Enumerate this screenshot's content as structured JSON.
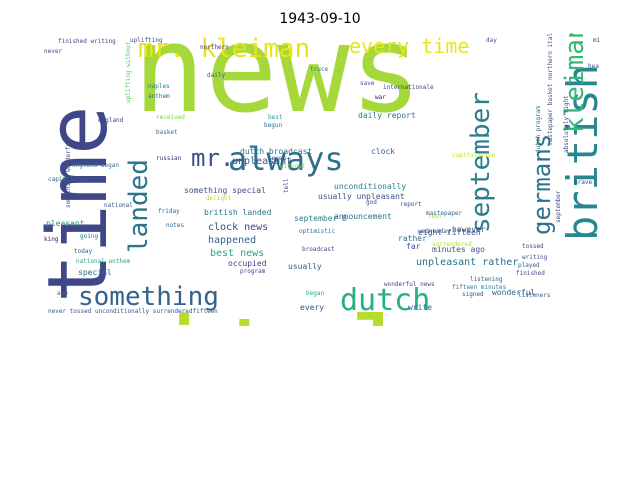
{
  "title": "1943-09-10",
  "words": [
    {
      "text": "news",
      "color": "#a5d83b",
      "size": 120
    },
    {
      "text": "italy",
      "color": "#b6dd2e",
      "size": 110
    },
    {
      "text": "time",
      "color": "#3f4788",
      "size": 82
    },
    {
      "text": "mr. kleiman",
      "color": "#e8e41a",
      "size": 26
    },
    {
      "text": "every time",
      "color": "#e8e41a",
      "size": 20
    },
    {
      "text": "british",
      "color": "#24888e",
      "size": 42
    },
    {
      "text": "mr.",
      "color": "#3b518b",
      "size": 24
    },
    {
      "text": "always",
      "color": "#2d708e",
      "size": 32
    },
    {
      "text": "landed",
      "color": "#2b748e",
      "size": 26
    },
    {
      "text": "september",
      "color": "#287d8e",
      "size": 26
    },
    {
      "text": "germans",
      "color": "#2c718e",
      "size": 24
    },
    {
      "text": "kleiman",
      "color": "#35b779",
      "size": 26
    },
    {
      "text": "something",
      "color": "#33628d",
      "size": 26
    },
    {
      "text": "dutch",
      "color": "#2ab07f",
      "size": 30
    },
    {
      "text": "uplifting",
      "color": "#3e4a89",
      "size": 6
    },
    {
      "text": "northern",
      "color": "#453882",
      "size": 6
    },
    {
      "text": "truce",
      "color": "#2a788e",
      "size": 6
    },
    {
      "text": "daily",
      "color": "#3b528b",
      "size": 6
    },
    {
      "text": "naples",
      "color": "#26828e",
      "size": 6
    },
    {
      "text": "anthem",
      "color": "#2d708e",
      "size": 6
    },
    {
      "text": "england",
      "color": "#404688",
      "size": 6
    },
    {
      "text": "received",
      "color": "#7ad151",
      "size": 6
    },
    {
      "text": "basket",
      "color": "#2b758e",
      "size": 6
    },
    {
      "text": "russian",
      "color": "#482173",
      "size": 6
    },
    {
      "text": "something wonderful",
      "color": "#3e4989",
      "size": 6
    },
    {
      "text": "england began",
      "color": "#2f6c8e",
      "size": 6
    },
    {
      "text": "capitulated.",
      "color": "#32658e",
      "size": 6
    },
    {
      "text": "national",
      "color": "#3a538b",
      "size": 6
    },
    {
      "text": "king",
      "color": "#440154",
      "size": 6
    },
    {
      "text": "pleasant",
      "color": "#21918c",
      "size": 8
    },
    {
      "text": "going",
      "color": "#2e6e8e",
      "size": 6
    },
    {
      "text": "today",
      "color": "#355f8d",
      "size": 6
    },
    {
      "text": "special",
      "color": "#31688e",
      "size": 8
    },
    {
      "text": "national anthem",
      "color": "#27ad81",
      "size": 6
    },
    {
      "text": "ago",
      "color": "#355f8d",
      "size": 6
    },
    {
      "text": "never tossed unconditionally surrenderedfifteen",
      "color": "#3b528b",
      "size": 6
    },
    {
      "text": "finished writing",
      "color": "#3e4c8a",
      "size": 6
    },
    {
      "text": "never",
      "color": "#3e4a89",
      "size": 6
    },
    {
      "text": "uplifting without",
      "color": "#5cc863",
      "size": 6
    },
    {
      "text": "best",
      "color": "#21a685",
      "size": 6
    },
    {
      "text": "begun",
      "color": "#2c728e",
      "size": 6
    },
    {
      "text": "dutch broadcast",
      "color": "#2a788e",
      "size": 8
    },
    {
      "text": "unpleasant",
      "color": "#3b528b",
      "size": 10
    },
    {
      "text": "something special",
      "color": "#3e4c8a",
      "size": 8
    },
    {
      "text": "delight",
      "color": "#b5de2b",
      "size": 6
    },
    {
      "text": "british landed",
      "color": "#2b758e",
      "size": 8
    },
    {
      "text": "friday",
      "color": "#31688e",
      "size": 6
    },
    {
      "text": "notes",
      "color": "#33638d",
      "size": 6
    },
    {
      "text": "clock news",
      "color": "#404688",
      "size": 10
    },
    {
      "text": "happened",
      "color": "#355f8d",
      "size": 10
    },
    {
      "text": "best news",
      "color": "#22a884",
      "size": 10
    },
    {
      "text": "occupied",
      "color": "#414487",
      "size": 8
    },
    {
      "text": "program",
      "color": "#3f4889",
      "size": 6
    },
    {
      "text": "usually",
      "color": "#34618d",
      "size": 8
    },
    {
      "text": "seven",
      "color": "#3a548c",
      "size": 6
    },
    {
      "text": "without",
      "color": "#8fd744",
      "size": 6
    },
    {
      "text": "tell",
      "color": "#3f4788",
      "size": 6
    },
    {
      "text": "september 8",
      "color": "#27808e",
      "size": 8
    },
    {
      "text": "optimistic",
      "color": "#2e6e8e",
      "size": 6
    },
    {
      "text": "broadcast",
      "color": "#3d4e8a",
      "size": 6
    },
    {
      "text": "began",
      "color": "#2ab07f",
      "size": 6
    },
    {
      "text": "every",
      "color": "#3b528b",
      "size": 8
    },
    {
      "text": "usually unpleasant",
      "color": "#3b528b",
      "size": 8
    },
    {
      "text": "unconditionally",
      "color": "#287c8e",
      "size": 8
    },
    {
      "text": "announcement",
      "color": "#2e6f8e",
      "size": 8
    },
    {
      "text": "daily report",
      "color": "#2b748e",
      "size": 8
    },
    {
      "text": "save",
      "color": "#3b528b",
      "size": 6
    },
    {
      "text": "internationale",
      "color": "#3f4788",
      "size": 6
    },
    {
      "text": "clock",
      "color": "#33628d",
      "size": 8
    },
    {
      "text": "war",
      "color": "#440154",
      "size": 6
    },
    {
      "text": "god",
      "color": "#3a548c",
      "size": 6
    },
    {
      "text": "report",
      "color": "#3b518b",
      "size": 6
    },
    {
      "text": "capitulation",
      "color": "#bddf26",
      "size": 6
    },
    {
      "text": "mastepaper",
      "color": "#32648e",
      "size": 6
    },
    {
      "text": "four",
      "color": "#95d840",
      "size": 6
    },
    {
      "text": "wednesday",
      "color": "#39568c",
      "size": 6
    },
    {
      "text": "far",
      "color": "#3b518b",
      "size": 8
    },
    {
      "text": "rather",
      "color": "#2e6e8e",
      "size": 8
    },
    {
      "text": "surrendered",
      "color": "#b8de29",
      "size": 6
    },
    {
      "text": "minutes ago",
      "color": "#39568c",
      "size": 8
    },
    {
      "text": "eight-fifteen",
      "color": "#3b528b",
      "size": 8
    },
    {
      "text": "however",
      "color": "#3f4889",
      "size": 8
    },
    {
      "text": "unpleasant rather",
      "color": "#2c718e",
      "size": 10
    },
    {
      "text": "wonderful news",
      "color": "#3f4889",
      "size": 6
    },
    {
      "text": "fifteen minutes",
      "color": "#277f8e",
      "size": 6
    },
    {
      "text": "write",
      "color": "#2f6c8e",
      "size": 8
    },
    {
      "text": "signed",
      "color": "#3b518b",
      "size": 6
    },
    {
      "text": "wonderful",
      "color": "#31688e",
      "size": 8
    },
    {
      "text": "listening",
      "color": "#3a548c",
      "size": 6
    },
    {
      "text": "finished",
      "color": "#3f4788",
      "size": 6
    },
    {
      "text": "played",
      "color": "#365c8d",
      "size": 6
    },
    {
      "text": "writing",
      "color": "#3b528b",
      "size": 6
    },
    {
      "text": "tossed",
      "color": "#3f4889",
      "size": 6
    },
    {
      "text": "listeners",
      "color": "#375b8d",
      "size": 6
    },
    {
      "text": "day",
      "color": "#3b518b",
      "size": 6
    },
    {
      "text": "heard",
      "color": "#3b518b",
      "size": 6
    },
    {
      "text": "minutes",
      "color": "#3f4788",
      "size": 6
    },
    {
      "text": "dutch program",
      "color": "#2c728e",
      "size": 6
    },
    {
      "text": "mastepaper basket northern italy",
      "color": "#3b528b",
      "size": 6
    },
    {
      "text": "september",
      "color": "#3f4788",
      "size": 6
    },
    {
      "text": "absolutely right",
      "color": "#3f4788",
      "size": 6
    },
    {
      "text": "brave",
      "color": "#3f4788",
      "size": 6
    }
  ]
}
